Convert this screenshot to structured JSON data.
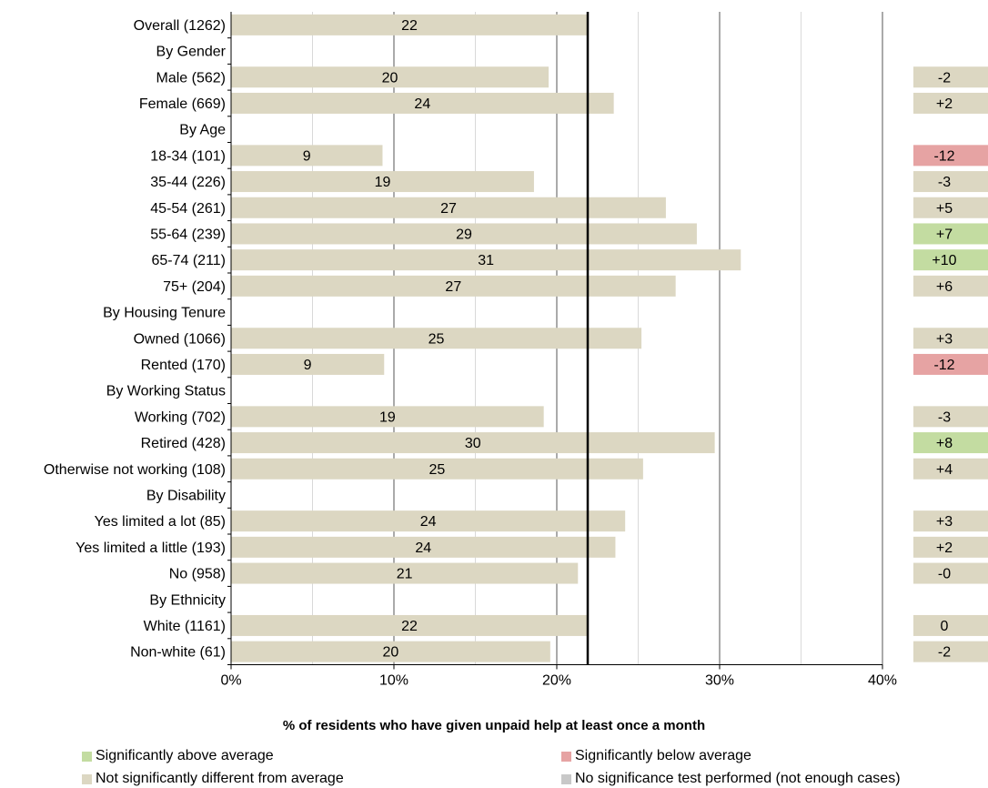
{
  "chart_data": {
    "type": "bar",
    "orientation": "horizontal",
    "xlabel": "% of residents who have given unpaid help at least once a month",
    "xlim": [
      0,
      40
    ],
    "xticks": [
      "0%",
      "10%",
      "20%",
      "30%",
      "40%"
    ],
    "average_value": 21.9,
    "rows": [
      {
        "label": "Overall (1262)",
        "value": 21.9,
        "value_label": "22",
        "diff": "",
        "status": ""
      },
      {
        "label": "By Gender",
        "header": true
      },
      {
        "label": "Male (562)",
        "value": 19.5,
        "value_label": "20",
        "diff": "-2",
        "status": "ns"
      },
      {
        "label": "Female (669)",
        "value": 23.5,
        "value_label": "24",
        "diff": "+2",
        "status": "ns"
      },
      {
        "label": "By Age",
        "header": true
      },
      {
        "label": "18-34 (101)",
        "value": 9.3,
        "value_label": "9",
        "diff": "-12",
        "status": "below"
      },
      {
        "label": "35-44 (226)",
        "value": 18.6,
        "value_label": "19",
        "diff": "-3",
        "status": "ns"
      },
      {
        "label": "45-54 (261)",
        "value": 26.7,
        "value_label": "27",
        "diff": "+5",
        "status": "ns"
      },
      {
        "label": "55-64 (239)",
        "value": 28.6,
        "value_label": "29",
        "diff": "+7",
        "status": "above"
      },
      {
        "label": "65-74 (211)",
        "value": 31.3,
        "value_label": "31",
        "diff": "+10",
        "status": "above"
      },
      {
        "label": "75+ (204)",
        "value": 27.3,
        "value_label": "27",
        "diff": "+6",
        "status": "ns"
      },
      {
        "label": "By Housing Tenure",
        "header": true
      },
      {
        "label": "Owned (1066)",
        "value": 25.2,
        "value_label": "25",
        "diff": "+3",
        "status": "ns"
      },
      {
        "label": "Rented (170)",
        "value": 9.4,
        "value_label": "9",
        "diff": "-12",
        "status": "below"
      },
      {
        "label": "By Working Status",
        "header": true
      },
      {
        "label": "Working (702)",
        "value": 19.2,
        "value_label": "19",
        "diff": "-3",
        "status": "ns"
      },
      {
        "label": "Retired (428)",
        "value": 29.7,
        "value_label": "30",
        "diff": "+8",
        "status": "above"
      },
      {
        "label": "Otherwise not working (108)",
        "value": 25.3,
        "value_label": "25",
        "diff": "+4",
        "status": "ns"
      },
      {
        "label": "By Disability",
        "header": true
      },
      {
        "label": "Yes limited a lot (85)",
        "value": 24.2,
        "value_label": "24",
        "diff": "+3",
        "status": "ns"
      },
      {
        "label": "Yes limited a little (193)",
        "value": 23.6,
        "value_label": "24",
        "diff": "+2",
        "status": "ns"
      },
      {
        "label": "No (958)",
        "value": 21.3,
        "value_label": "21",
        "diff": "-0",
        "status": "ns"
      },
      {
        "label": "By Ethnicity",
        "header": true
      },
      {
        "label": "White (1161)",
        "value": 21.9,
        "value_label": "22",
        "diff": "0",
        "status": "ns"
      },
      {
        "label": "Non-white (61)",
        "value": 19.6,
        "value_label": "20",
        "diff": "-2",
        "status": "ns"
      }
    ],
    "legend": [
      {
        "key": "above",
        "label": "Significantly above average"
      },
      {
        "key": "below",
        "label": "Significantly below average"
      },
      {
        "key": "ns",
        "label": "Not significantly different from average"
      },
      {
        "key": "na",
        "label": "No significance test performed (not enough cases)"
      }
    ],
    "colors": {
      "bar": "#dcd7c2",
      "above": "#c3dca1",
      "below": "#e6a3a3",
      "ns": "#dcd7c2",
      "na": "#c8c8c8",
      "grid": "#7f7f7f",
      "average_line": "#000000"
    }
  }
}
